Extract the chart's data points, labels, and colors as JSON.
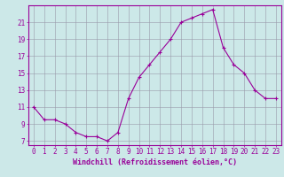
{
  "hours": [
    0,
    1,
    2,
    3,
    4,
    5,
    6,
    7,
    8,
    9,
    10,
    11,
    12,
    13,
    14,
    15,
    16,
    17,
    18,
    19,
    20,
    21,
    22,
    23
  ],
  "values": [
    11,
    9.5,
    9.5,
    9,
    8,
    7.5,
    7.5,
    7,
    8,
    12,
    14.5,
    16,
    17.5,
    19,
    21,
    21.5,
    22,
    22.5,
    18,
    16,
    15,
    13,
    12,
    12
  ],
  "line_color": "#990099",
  "marker": "+",
  "bg_color": "#cce8e8",
  "grid_color": "#9999aa",
  "xlabel": "Windchill (Refroidissement éolien,°C)",
  "xlabel_color": "#990099",
  "yticks": [
    7,
    9,
    11,
    13,
    15,
    17,
    19,
    21
  ],
  "ylim": [
    6.5,
    23.0
  ],
  "xlim": [
    -0.5,
    23.5
  ],
  "tick_color": "#990099",
  "axis_color": "#990099",
  "font_size": 5.5,
  "label_font_size": 6.0
}
